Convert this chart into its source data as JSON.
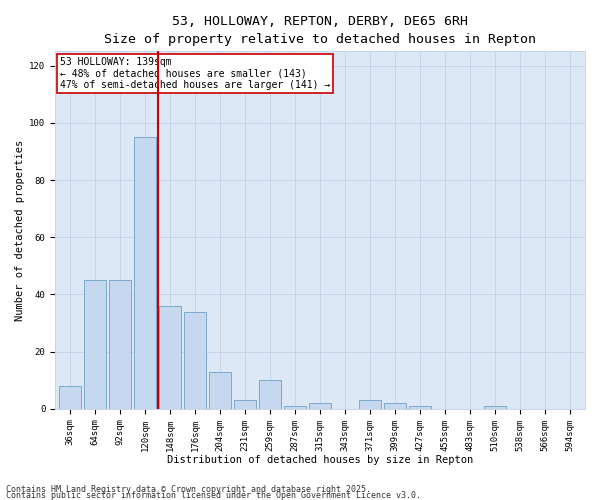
{
  "title_line1": "53, HOLLOWAY, REPTON, DERBY, DE65 6RH",
  "title_line2": "Size of property relative to detached houses in Repton",
  "xlabel": "Distribution of detached houses by size in Repton",
  "ylabel": "Number of detached properties",
  "categories": [
    "36sqm",
    "64sqm",
    "92sqm",
    "120sqm",
    "148sqm",
    "176sqm",
    "204sqm",
    "231sqm",
    "259sqm",
    "287sqm",
    "315sqm",
    "343sqm",
    "371sqm",
    "399sqm",
    "427sqm",
    "455sqm",
    "483sqm",
    "510sqm",
    "538sqm",
    "566sqm",
    "594sqm"
  ],
  "values": [
    8,
    45,
    45,
    95,
    36,
    34,
    13,
    3,
    10,
    1,
    2,
    0,
    3,
    2,
    1,
    0,
    0,
    1,
    0,
    0,
    0
  ],
  "bar_color": "#c5d8f0",
  "bar_edge_color": "#7aaacc",
  "vline_x": 3.5,
  "vline_color": "#cc0000",
  "annotation_text": "53 HOLLOWAY: 139sqm\n← 48% of detached houses are smaller (143)\n47% of semi-detached houses are larger (141) →",
  "annotation_box_color": "#ffffff",
  "annotation_box_edge": "#cc0000",
  "ylim": [
    0,
    125
  ],
  "yticks": [
    0,
    20,
    40,
    60,
    80,
    100,
    120
  ],
  "grid_color": "#c8d4e8",
  "bg_color": "#dce8f5",
  "footer_line1": "Contains HM Land Registry data © Crown copyright and database right 2025.",
  "footer_line2": "Contains public sector information licensed under the Open Government Licence v3.0.",
  "title_fontsize": 9.5,
  "subtitle_fontsize": 8.5,
  "axis_label_fontsize": 7.5,
  "tick_fontsize": 6.5,
  "annotation_fontsize": 7,
  "footer_fontsize": 6
}
